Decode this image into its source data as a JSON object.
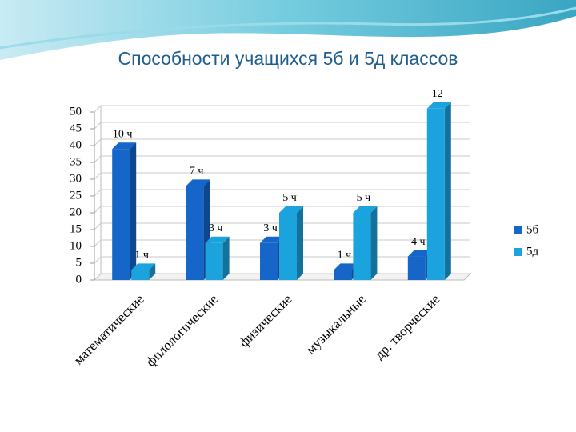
{
  "chart_data": {
    "type": "bar3d",
    "title": "Способности учащихся 5б и 5д классов",
    "categories": [
      "математические",
      "филологические",
      "физические",
      "музыкальные",
      "др. творческие"
    ],
    "series": [
      {
        "name": "5б",
        "color": "#1666c9",
        "values": [
          39,
          28,
          11,
          3,
          7
        ],
        "labels": [
          "10 ч",
          "7 ч",
          "3 ч",
          "1 ч",
          "4 ч"
        ]
      },
      {
        "name": "5д",
        "color": "#1ba3de",
        "values": [
          3,
          11,
          20,
          20,
          51
        ],
        "labels": [
          "1 ч",
          "3 ч",
          "5 ч",
          "5 ч",
          "12"
        ]
      }
    ],
    "ylim": [
      0,
      50
    ],
    "yticks": [
      0,
      5,
      10,
      15,
      20,
      25,
      30,
      35,
      40,
      45,
      50
    ],
    "grid": true,
    "legend": "right"
  }
}
